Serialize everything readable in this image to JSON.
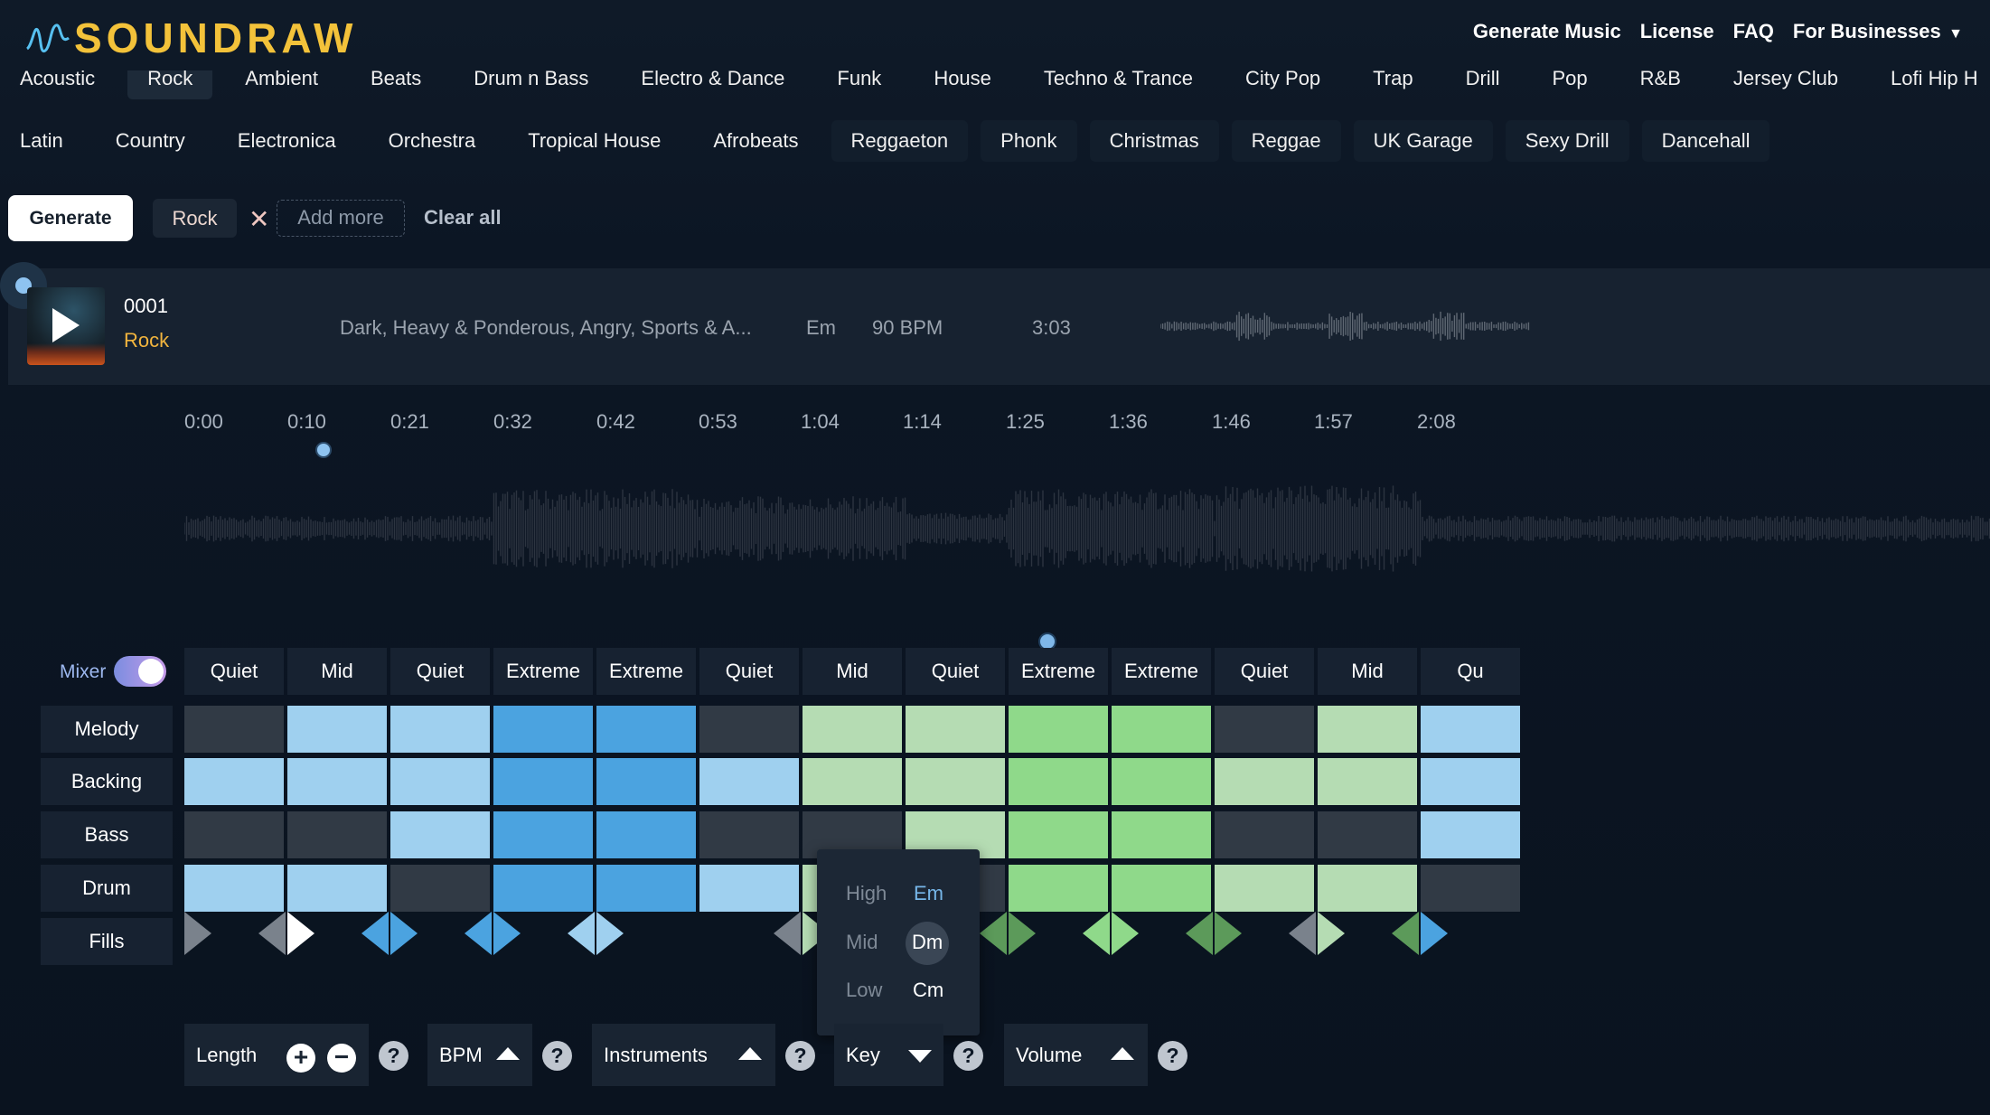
{
  "header": {
    "brand": "SOUNDRAW",
    "nav": [
      "Generate Music",
      "License",
      "FAQ",
      "For Businesses"
    ]
  },
  "genres_row1": [
    "Acoustic",
    "Rock",
    "Ambient",
    "Beats",
    "Drum n Bass",
    "Electro & Dance",
    "Funk",
    "House",
    "Techno & Trance",
    "City Pop",
    "Trap",
    "Drill",
    "Pop",
    "R&B",
    "Jersey Club",
    "Lofi Hip H"
  ],
  "genres_row2": [
    "Latin",
    "Country",
    "Electronica",
    "Orchestra",
    "Tropical House",
    "Afrobeats",
    "Reggaeton",
    "Phonk",
    "Christmas",
    "Reggae",
    "UK Garage",
    "Sexy Drill",
    "Dancehall"
  ],
  "selection": {
    "generate": "Generate",
    "tag": "Rock",
    "add_more": "Add more",
    "clear_all": "Clear all"
  },
  "track": {
    "number": "0001",
    "genre": "Rock",
    "moods": "Dark, Heavy & Ponderous, Angry, Sports & A...",
    "key": "Em",
    "bpm": "90 BPM",
    "length": "3:03"
  },
  "timeline": [
    "0:00",
    "0:10",
    "0:21",
    "0:32",
    "0:42",
    "0:53",
    "1:04",
    "1:14",
    "1:25",
    "1:36",
    "1:46",
    "1:57",
    "2:08"
  ],
  "mixer": {
    "label": "Mixer",
    "on": true,
    "intensities": [
      "Quiet",
      "Mid",
      "Quiet",
      "Extreme",
      "Extreme",
      "Quiet",
      "Mid",
      "Quiet",
      "Extreme",
      "Extreme",
      "Quiet",
      "Mid",
      "Qu"
    ],
    "rows": [
      "Melody",
      "Backing",
      "Bass",
      "Drum",
      "Fills"
    ]
  },
  "key_popup": {
    "levels": [
      "High",
      "Mid",
      "Low"
    ],
    "keys": [
      "Em",
      "Dm",
      "Cm"
    ],
    "selected": "Dm",
    "current": "Em"
  },
  "controls": {
    "length": "Length",
    "bpm": "BPM",
    "instruments": "Instruments",
    "key": "Key",
    "volume": "Volume"
  },
  "colors": {
    "accent": "#f3c23a",
    "blue_light": "#9fd0ef",
    "blue_dark": "#4ba3e0",
    "green_light": "#b5dcb3",
    "green_bright": "#8fd98a",
    "off": "#313a45"
  }
}
